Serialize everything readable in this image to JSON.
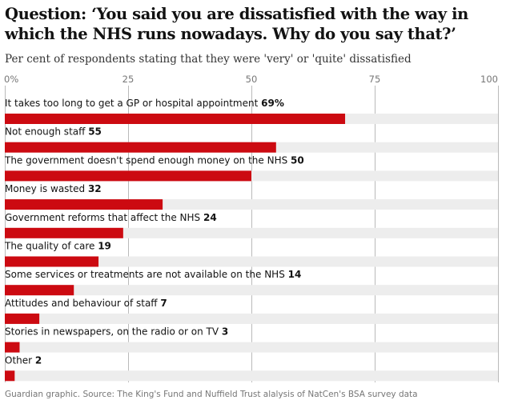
{
  "title": "Question: ‘You said you are dissatisfied with the way in which the NHS runs nowadays. Why do you say that?’",
  "subtitle": "Per cent of respondents stating that they were 'very' or 'quite' dissatisfied",
  "source": "Guardian graphic. Source: The King's Fund and Nuffield Trust alalysis of NatCen's BSA survey data",
  "colors": {
    "bar": "#cc0a11",
    "track": "#ededed",
    "gridline": "#bababa"
  },
  "chart_data": {
    "type": "bar",
    "orientation": "horizontal",
    "title": "Question: ‘You said you are dissatisfied with the way in which the NHS runs nowadays. Why do you say that?’",
    "subtitle": "Per cent of respondents stating that they were 'very' or 'quite' dissatisfied",
    "xlim": [
      0,
      100
    ],
    "xticks": [
      0,
      25,
      50,
      75,
      100
    ],
    "xtick_labels": [
      "0%",
      "25",
      "50",
      "75",
      "100"
    ],
    "grid": true,
    "categories": [
      "It takes too long to get a GP or hospital appointment",
      "Not enough staff",
      "The government doesn't spend enough money on the NHS",
      "Money is wasted",
      "Government reforms that affect the NHS",
      "The quality of care",
      "Some services or treatments are not available on the NHS",
      "Attitudes and behaviour of staff",
      "Stories in newspapers, on the radio or on TV",
      "Other"
    ],
    "values": [
      69,
      55,
      50,
      32,
      24,
      19,
      14,
      7,
      3,
      2
    ],
    "value_labels": [
      "69%",
      "55",
      "50",
      "32",
      "24",
      "19",
      "14",
      "7",
      "3",
      "2"
    ]
  }
}
